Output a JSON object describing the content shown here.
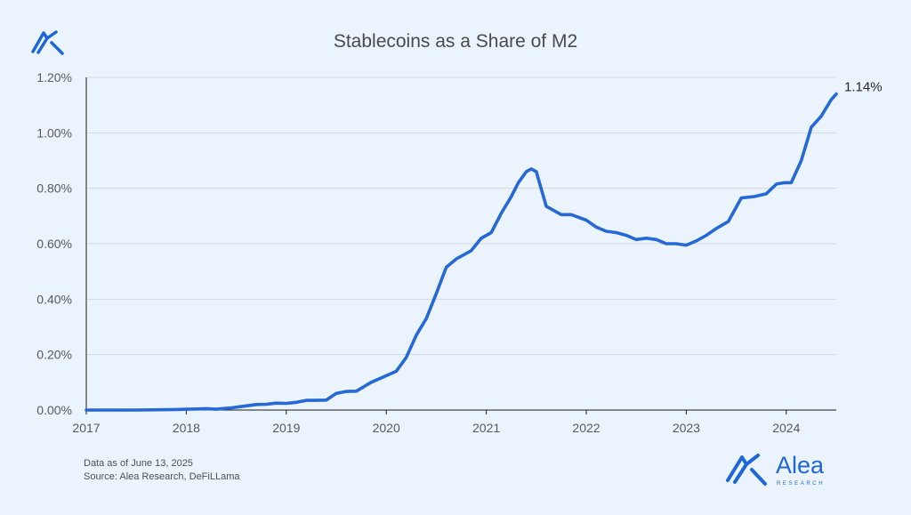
{
  "header": {
    "title": "Stablecoins as a Share of M2"
  },
  "footer": {
    "note": "Data as of June 13, 2025",
    "source": "Source: Alea Research, DeFiLLama"
  },
  "brand": {
    "name": "Alea",
    "tagline": "RESEARCH"
  },
  "colors": {
    "background": "#ebf4fd",
    "line": "#2568d6",
    "grid": "#d3d8e0",
    "axis": "#1a1a1a",
    "brand": "#1f67d6"
  },
  "chart_data": {
    "type": "line",
    "title": "Stablecoins as a Share of M2",
    "xlabel": "",
    "ylabel": "",
    "xlim": [
      2017,
      2024.5
    ],
    "ylim": [
      0,
      1.2
    ],
    "y_ticks": [
      0,
      0.2,
      0.4,
      0.6,
      0.8,
      1.0,
      1.2
    ],
    "y_tick_labels": [
      "0.00%",
      "0.20%",
      "0.40%",
      "0.60%",
      "0.80%",
      "1.00%",
      "1.20%"
    ],
    "x_ticks": [
      2017,
      2018,
      2019,
      2020,
      2021,
      2022,
      2023,
      2024
    ],
    "x_tick_labels": [
      "2017",
      "2018",
      "2019",
      "2020",
      "2021",
      "2022",
      "2023",
      "2024"
    ],
    "grid": "horizontal",
    "legend": "none",
    "end_label": "1.14%",
    "series": [
      {
        "x": [
          2017.0,
          2017.5,
          2017.9,
          2018.0,
          2018.1,
          2018.2,
          2018.3,
          2018.45,
          2018.6,
          2018.7,
          2018.8,
          2018.9,
          2019.0,
          2019.1,
          2019.2,
          2019.3,
          2019.4,
          2019.5,
          2019.6,
          2019.7,
          2019.85,
          2020.0,
          2020.1,
          2020.2,
          2020.3,
          2020.4,
          2020.5,
          2020.6,
          2020.7,
          2020.8,
          2020.85,
          2020.95,
          2021.05,
          2021.15,
          2021.25,
          2021.32,
          2021.4,
          2021.45,
          2021.5,
          2021.6,
          2021.75,
          2021.85,
          2022.0,
          2022.1,
          2022.2,
          2022.3,
          2022.4,
          2022.5,
          2022.6,
          2022.7,
          2022.8,
          2022.9,
          2023.0,
          2023.1,
          2023.2,
          2023.3,
          2023.42,
          2023.55,
          2023.68,
          2023.8,
          2023.9,
          2023.98,
          2024.05,
          2024.15,
          2024.25,
          2024.35,
          2024.45,
          2024.5
        ],
        "y": [
          0.0,
          0.0,
          0.002,
          0.003,
          0.004,
          0.005,
          0.003,
          0.008,
          0.015,
          0.02,
          0.021,
          0.025,
          0.024,
          0.028,
          0.035,
          0.035,
          0.036,
          0.06,
          0.067,
          0.068,
          0.1,
          0.124,
          0.14,
          0.19,
          0.27,
          0.33,
          0.42,
          0.515,
          0.545,
          0.565,
          0.575,
          0.62,
          0.64,
          0.71,
          0.77,
          0.82,
          0.86,
          0.87,
          0.86,
          0.735,
          0.705,
          0.705,
          0.685,
          0.66,
          0.645,
          0.64,
          0.63,
          0.615,
          0.62,
          0.615,
          0.6,
          0.6,
          0.595,
          0.61,
          0.63,
          0.655,
          0.68,
          0.765,
          0.77,
          0.78,
          0.815,
          0.82,
          0.82,
          0.9,
          1.02,
          1.06,
          1.12,
          1.14
        ]
      }
    ]
  }
}
